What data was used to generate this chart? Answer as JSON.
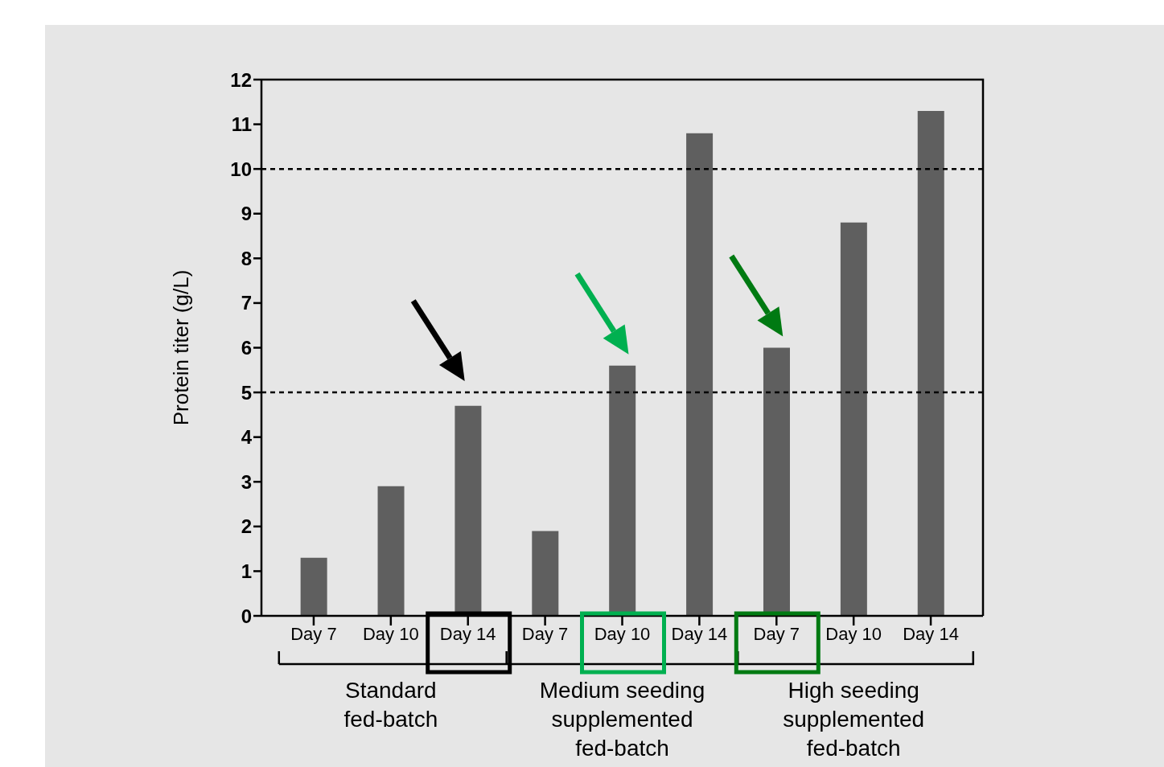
{
  "chart_data": {
    "type": "bar",
    "ylabel": "Protein titer (g/L)",
    "categories": [
      "Day 7",
      "Day 10",
      "Day 14",
      "Day 7",
      "Day 10",
      "Day 14",
      "Day 7",
      "Day 10",
      "Day 14"
    ],
    "values": [
      1.3,
      2.9,
      4.7,
      1.9,
      5.6,
      10.8,
      6.0,
      8.8,
      11.3
    ],
    "color": "#5f5f5f",
    "ylim": [
      0,
      12
    ],
    "yticks": [
      0,
      1,
      2,
      3,
      4,
      5,
      6,
      7,
      8,
      9,
      10,
      11,
      12
    ],
    "ref_lines": [
      {
        "axis": "y",
        "value": 5,
        "color": "#000000",
        "line_style": "dashed"
      },
      {
        "axis": "y",
        "value": 10,
        "color": "#000000",
        "line_style": "dashed"
      }
    ],
    "annotations": [
      "Standard\nfed-batch",
      "Medium seeding\nsupplemented\nfed-batch",
      "High seeding\nsupplemented\nfed-batch"
    ],
    "grid": false,
    "legend": false
  }
}
